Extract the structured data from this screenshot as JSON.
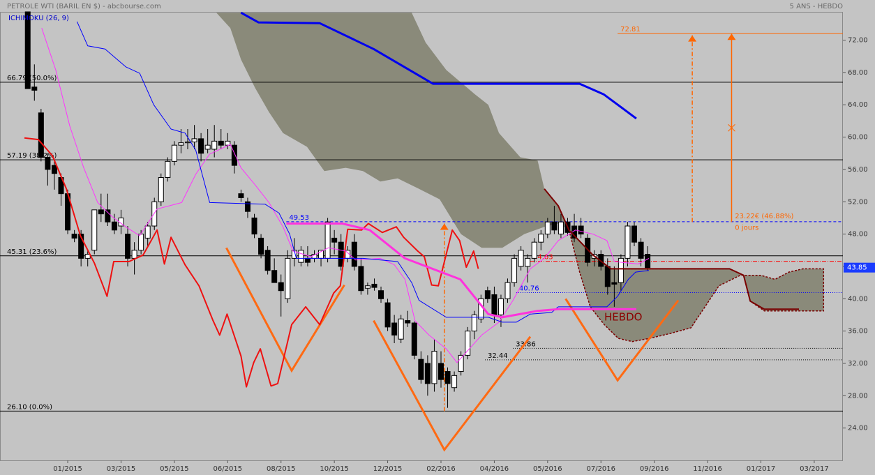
{
  "chart_data": {
    "type": "candlestick",
    "title": "PETROLE WTI (BARIL EN $) - abcbourse.com",
    "subtitle": "5 ANS - HEBDO",
    "legend": "ICHIMOKU (26, 9)",
    "xlim": [
      -4.16,
      122.3
    ],
    "xticks": [
      {
        "value": 6,
        "label": "01/2015"
      },
      {
        "value": 14,
        "label": "03/2015"
      },
      {
        "value": 22,
        "label": "05/2015"
      },
      {
        "value": 30,
        "label": "06/2015"
      },
      {
        "value": 38,
        "label": "08/2015"
      },
      {
        "value": 46,
        "label": "10/2015"
      },
      {
        "value": 54,
        "label": "12/2015"
      },
      {
        "value": 62,
        "label": "02/2016"
      },
      {
        "value": 70,
        "label": "04/2016"
      },
      {
        "value": 78,
        "label": "05/2016"
      },
      {
        "value": 86,
        "label": "07/2016"
      },
      {
        "value": 94,
        "label": "09/2016"
      },
      {
        "value": 102,
        "label": "11/2016"
      },
      {
        "value": 110,
        "label": "01/2017"
      },
      {
        "value": 118,
        "label": "03/2017"
      }
    ],
    "ylim": [
      20,
      75.5
    ],
    "yticks": [
      {
        "value": 24,
        "label": "24.00"
      },
      {
        "value": 28,
        "label": "28.00"
      },
      {
        "value": 32,
        "label": "32.00"
      },
      {
        "value": 36,
        "label": "36.00"
      },
      {
        "value": 40,
        "label": "40.00"
      },
      {
        "value": 44,
        "label": "44.00"
      },
      {
        "value": 48,
        "label": "48.00"
      },
      {
        "value": 52,
        "label": "52.00"
      },
      {
        "value": 56,
        "label": "56.00"
      },
      {
        "value": 60,
        "label": "60.00"
      },
      {
        "value": 64,
        "label": "64.00"
      },
      {
        "value": 68,
        "label": "68.00"
      },
      {
        "value": 72,
        "label": "72.00"
      }
    ],
    "up_color": "#ffffff",
    "down_color": "#000000",
    "ohlc": [
      [
        75.5,
        75.5,
        66,
        66
      ],
      [
        66.2,
        69,
        64.5,
        65.8
      ],
      [
        63,
        63.5,
        57,
        57.5
      ],
      [
        57.5,
        58,
        54,
        56
      ],
      [
        56.5,
        57,
        53.5,
        55.5
      ],
      [
        55,
        55.5,
        51.5,
        53
      ],
      [
        53,
        53.5,
        48,
        48.5
      ],
      [
        48,
        48.5,
        47,
        47.5
      ],
      [
        48,
        48.5,
        44,
        45
      ],
      [
        45,
        46,
        44,
        45.5
      ],
      [
        46,
        51,
        45.5,
        51
      ],
      [
        51,
        53,
        49.5,
        50.5
      ],
      [
        51,
        53,
        49,
        49.5
      ],
      [
        49.5,
        50.5,
        48,
        48.5
      ],
      [
        49,
        51,
        48,
        50
      ],
      [
        48,
        49,
        44,
        45
      ],
      [
        45,
        47,
        43,
        46
      ],
      [
        46,
        48.5,
        45.5,
        48
      ],
      [
        47.5,
        49.5,
        46.5,
        49
      ],
      [
        49,
        52.5,
        48.5,
        52
      ],
      [
        52,
        55.5,
        51.5,
        55
      ],
      [
        55,
        57.5,
        54.5,
        57
      ],
      [
        57,
        59.5,
        56.5,
        59
      ],
      [
        59,
        61,
        58,
        59.3
      ],
      [
        59.3,
        61,
        58.5,
        59.4
      ],
      [
        59.4,
        61.5,
        58.5,
        59.8
      ],
      [
        59.8,
        60.5,
        57,
        58
      ],
      [
        58.5,
        61,
        58,
        59
      ],
      [
        58.5,
        61.5,
        57.5,
        59.5
      ],
      [
        59.5,
        61,
        58.5,
        59
      ],
      [
        59,
        60.5,
        58.5,
        59.5
      ],
      [
        59,
        59.5,
        55.5,
        56.5
      ],
      [
        53,
        53.5,
        52,
        52.5
      ],
      [
        52,
        52.5,
        50,
        50.8
      ],
      [
        50,
        50.5,
        47.5,
        48
      ],
      [
        47.5,
        48,
        45,
        45.5
      ],
      [
        46,
        46.5,
        43,
        43.5
      ],
      [
        43.5,
        45,
        42,
        42
      ],
      [
        42,
        43,
        37.8,
        41
      ],
      [
        40,
        46,
        39.5,
        45
      ],
      [
        45,
        47.5,
        44,
        46
      ],
      [
        44.5,
        46.5,
        44,
        46
      ],
      [
        45,
        46.5,
        44,
        44.5
      ],
      [
        45,
        46,
        44.5,
        45.5
      ],
      [
        45,
        46,
        44,
        46
      ],
      [
        45,
        50,
        44.5,
        49.5
      ],
      [
        47.5,
        48.5,
        45.5,
        47
      ],
      [
        47,
        48,
        43.5,
        44
      ],
      [
        45,
        46.5,
        44.5,
        46
      ],
      [
        47,
        48,
        43.5,
        44
      ],
      [
        44,
        45,
        40.5,
        41
      ],
      [
        41.3,
        42,
        40.5,
        41.6
      ],
      [
        41.8,
        42.5,
        41,
        41.4
      ],
      [
        41,
        41.5,
        39.5,
        40
      ],
      [
        39.5,
        40,
        36,
        36.5
      ],
      [
        37,
        38,
        34.5,
        35.5
      ],
      [
        35,
        38,
        34.5,
        37.5
      ],
      [
        37.3,
        38.5,
        36.5,
        37
      ],
      [
        37,
        37.2,
        32.5,
        33
      ],
      [
        32.5,
        33.5,
        29.5,
        30
      ],
      [
        32,
        33,
        28,
        29.5
      ],
      [
        29.5,
        35,
        28.5,
        33.5
      ],
      [
        32,
        33.5,
        29,
        30
      ],
      [
        31,
        31.5,
        26.5,
        29.5
      ],
      [
        29,
        31,
        28.5,
        30.5
      ],
      [
        31,
        33.5,
        30.5,
        33
      ],
      [
        33,
        36.5,
        32.5,
        36
      ],
      [
        36,
        38.5,
        35,
        38
      ],
      [
        37.5,
        40.5,
        37,
        40
      ],
      [
        41,
        41.5,
        39.5,
        40
      ],
      [
        40.5,
        41.5,
        37,
        38
      ],
      [
        38,
        40.5,
        36.5,
        40
      ],
      [
        40,
        42.5,
        39.5,
        42
      ],
      [
        42,
        45.5,
        41.5,
        45
      ],
      [
        44,
        46.5,
        43.5,
        46
      ],
      [
        44,
        45.5,
        42,
        45
      ],
      [
        45,
        47.5,
        44.5,
        47
      ],
      [
        47,
        48.5,
        46,
        48
      ],
      [
        48,
        50,
        47.5,
        49.5
      ],
      [
        49.5,
        51.5,
        48,
        48.5
      ],
      [
        48,
        50.5,
        47.5,
        49.5
      ],
      [
        49.5,
        50,
        47.8,
        48.2
      ],
      [
        49,
        50.5,
        47,
        47.5
      ],
      [
        49,
        50,
        47.5,
        48
      ],
      [
        47.5,
        48,
        44,
        44.5
      ],
      [
        45,
        46,
        44,
        45.5
      ],
      [
        45.5,
        46,
        43.5,
        44
      ],
      [
        44,
        45,
        40.5,
        41.5
      ],
      [
        42,
        44,
        39,
        41.8
      ],
      [
        42,
        45.5,
        41,
        45
      ],
      [
        45,
        49.5,
        44,
        49
      ],
      [
        49,
        49.5,
        46.5,
        47
      ],
      [
        47,
        47.5,
        44,
        45
      ],
      [
        45.5,
        46.5,
        43.5,
        43.85
      ]
    ],
    "clouds": [
      {
        "color": "#8a8a7a",
        "x": [
          28.3,
          30.4,
          32.0,
          34.1,
          36.2,
          38.3,
          41.9,
          44.5,
          47.7,
          50.3,
          52.9,
          55.5,
          58.7,
          61.8,
          65.0,
          68.1,
          71.2,
          74.5,
          77.5,
          79.6,
          81.2,
          79.6,
          77.5,
          76.5,
          73.9,
          70.7,
          69.1,
          67.1,
          62.8,
          59.7,
          57.6
        ],
        "values": [
          75.4,
          73.5,
          69.6,
          66.1,
          63.1,
          60.5,
          58.8,
          55.8,
          56.2,
          55.8,
          54.5,
          54.9,
          53.6,
          52.3,
          48.0,
          46.3,
          46.3,
          48.0,
          48.9,
          49.3,
          48.5,
          51.5,
          53.6,
          57.1,
          57.5,
          60.5,
          64.0,
          65.3,
          68.3,
          71.7,
          75.4
        ]
      },
      {
        "color": "#8a8a7a",
        "stroke": "#7a0000",
        "x": [
          81.2,
          82.8,
          84.4,
          86.5,
          88.6,
          90.7,
          93.3,
          96.4,
          99.5,
          101.6,
          103.7,
          106.9,
          110.0,
          112.1,
          114.2,
          116.3,
          119.4,
          119.4,
          110.5,
          108.4,
          107.4,
          105.3,
          87.5,
          84.8
        ],
        "values": [
          48.5,
          43.3,
          39.0,
          36.8,
          35.1,
          34.7,
          35.1,
          35.7,
          36.4,
          39.0,
          41.6,
          42.9,
          42.9,
          42.4,
          43.3,
          43.7,
          43.7,
          38.5,
          38.5,
          39.7,
          42.9,
          43.7,
          43.7,
          45.4
        ]
      }
    ],
    "levels": [
      {
        "value": 66.79,
        "label": "66.79  (50.0%)",
        "color": "#000000"
      },
      {
        "value": 57.19,
        "label": "57.19  (38.2%)",
        "color": "#000000"
      },
      {
        "value": 45.31,
        "label": "45.31  (23.6%)",
        "color": "#000000"
      },
      {
        "value": 26.1,
        "label": "26.10  (0.0%)",
        "color": "#000000"
      },
      {
        "value": 49.53,
        "color": "#0000ff",
        "dash": "4,3",
        "x_start": 38.8
      },
      {
        "value": 40.76,
        "color": "#0000ff",
        "dash": "1,2",
        "x_start": 73.3
      },
      {
        "value": 44.63,
        "color": "#ff0000",
        "dash": "6,2,1,2",
        "x_start": 75.4
      },
      {
        "value": 33.86,
        "color": "#000000",
        "dash": "1,2",
        "x_start": 72.8
      },
      {
        "value": 32.44,
        "color": "#000000",
        "dash": "1,2",
        "x_start": 68.6
      },
      {
        "value": 72.81,
        "color": "#ff6600",
        "x_start": 88.5
      }
    ],
    "lines": [
      {
        "color": "#ff6a13",
        "width": 3,
        "x": [
          29.8,
          39.6,
          47.5
        ],
        "values": [
          46.3,
          31.1,
          41.7
        ]
      },
      {
        "color": "#ff6a13",
        "width": 3,
        "x": [
          51.9,
          62.5,
          75.4
        ],
        "values": [
          37.3,
          21.3,
          35.3
        ]
      },
      {
        "color": "#ff6a13",
        "width": 3,
        "x": [
          80.7,
          88.5,
          97.6
        ],
        "values": [
          40.0,
          29.9,
          39.8
        ]
      },
      {
        "color": "#ee1111",
        "width": 2,
        "x": [
          -0.5,
          1.6,
          3.7,
          5.8,
          7.9,
          10.0,
          11.9,
          12.9,
          15.2,
          17.3,
          19.4,
          20.5,
          21.5,
          23.6,
          25.7,
          27.8,
          28.8,
          29.9,
          32.0,
          32.8,
          33.9,
          34.9,
          36.5,
          37.5,
          39.6,
          41.7,
          43.8,
          45.9,
          46.9,
          48.0,
          50.1,
          51.1,
          53.2,
          55.3,
          56.4,
          58.5,
          59.5,
          60.6,
          61.6,
          63.7,
          64.8,
          65.8,
          66.9,
          67.6
        ],
        "values": [
          59.9,
          59.7,
          57.7,
          53.6,
          47.8,
          44.4,
          40.3,
          44.6,
          44.6,
          45.4,
          48.5,
          44.3,
          47.6,
          44.2,
          41.6,
          37.3,
          35.5,
          38.1,
          32.9,
          29.1,
          32.1,
          33.8,
          29.2,
          29.5,
          36.8,
          39.0,
          36.8,
          40.7,
          41.6,
          48.6,
          48.5,
          49.3,
          48.2,
          48.9,
          47.6,
          45.9,
          45.2,
          41.7,
          41.6,
          48.5,
          47.2,
          43.9,
          45.9,
          43.7
        ]
      },
      {
        "color": "#ff33ff",
        "width": 1,
        "x": [
          2.1,
          4.2,
          6.3,
          8.4,
          10.5,
          12.6,
          14.7,
          16.8,
          19.4,
          23.1,
          25.2,
          27.3,
          30.4,
          32.0,
          34.1,
          36.2,
          38.3,
          39.8,
          42.5,
          45.1,
          47.7,
          49.2,
          52.9,
          55.0,
          56.6,
          58.1,
          60.2,
          62.8,
          64.4,
          68.1,
          70.7,
          72.8,
          75.4,
          77.5,
          79.6,
          82.2,
          84.8,
          86.9,
          88.0,
          91.6,
          93.2
        ],
        "values": [
          73.5,
          68.3,
          61.4,
          56.2,
          51.9,
          50.2,
          48.9,
          47.8,
          51.1,
          51.9,
          55.4,
          57.9,
          59.1,
          56.2,
          54.1,
          51.9,
          48.9,
          45.9,
          45.2,
          46.3,
          45.9,
          44.8,
          45.0,
          44.2,
          42.4,
          37.3,
          35.5,
          33.8,
          32.1,
          35.5,
          37.1,
          39.8,
          43.7,
          45.0,
          47.2,
          48.5,
          48.0,
          47.2,
          44.6,
          44.3,
          45.0
        ]
      },
      {
        "color": "#0000ff",
        "width": 1,
        "x": [
          7.4,
          9.0,
          11.6,
          14.7,
          16.8,
          18.9,
          21.5,
          23.6,
          25.2,
          27.3,
          35.6,
          37.7,
          39.3,
          40.3,
          45.1,
          50.3,
          55.5,
          57.6,
          58.7,
          62.8,
          69.1,
          71.2,
          73.3,
          75.4,
          78.6,
          79.6,
          86.9,
          88.5,
          90.1,
          91.2,
          93.2
        ],
        "values": [
          74.3,
          71.3,
          70.9,
          68.7,
          67.9,
          64.0,
          61.0,
          60.5,
          58.4,
          51.9,
          51.7,
          50.6,
          48.0,
          45.0,
          45.0,
          45.0,
          44.6,
          42.0,
          39.8,
          37.7,
          37.7,
          37.1,
          37.1,
          38.1,
          38.3,
          39.0,
          39.0,
          40.3,
          42.4,
          43.3,
          43.5
        ]
      },
      {
        "color": "#0000ee",
        "width": 3,
        "x": [
          32.0,
          34.6,
          43.8,
          51.9,
          60.8,
          82.8,
          86.4,
          91.3
        ],
        "values": [
          75.4,
          74.2,
          74.1,
          70.9,
          66.6,
          66.6,
          65.3,
          62.3
        ]
      },
      {
        "color": "#ff33dd",
        "width": 3,
        "x": [
          38.8,
          47.2,
          51.3,
          56.6,
          64.9,
          69.1,
          71.2,
          76.5,
          79.6,
          91.3
        ],
        "values": [
          49.3,
          49.3,
          48.5,
          45.0,
          42.4,
          38.1,
          37.7,
          38.5,
          38.7,
          38.7
        ]
      },
      {
        "color": "#7a0000",
        "width": 2,
        "x": [
          77.5,
          79.6,
          81.2,
          84.8,
          87.5,
          105.3,
          107.4,
          108.4,
          110.5,
          115.7
        ],
        "values": [
          53.6,
          51.5,
          48.5,
          45.4,
          43.7,
          43.7,
          42.9,
          39.7,
          38.7,
          38.7
        ]
      }
    ],
    "arrows": [
      {
        "x": 62.5,
        "from": 26.1,
        "to": 49.3,
        "color": "#ff6600",
        "dash": "6,3,2,3"
      },
      {
        "x": 99.7,
        "from": 49.5,
        "to": 72.6,
        "color": "#ff6600",
        "dash": "6,3,2,3"
      },
      {
        "x": 105.6,
        "from": 49.5,
        "to": 72.8,
        "color": "#ff6600"
      }
    ],
    "annotations": [
      {
        "text": "HEBDO",
        "x": 86.5,
        "y": 37.7,
        "color": "#8b0000",
        "size": 15
      },
      {
        "text": "23.22€ (46.88%)",
        "x": 106.1,
        "y": 50.2,
        "color": "#ff6600",
        "size": 10
      },
      {
        "text": "0 jours",
        "x": 106.1,
        "y": 48.8,
        "color": "#ff6600",
        "size": 10
      }
    ],
    "last_price": 43.85,
    "last_price_color": "#1a3cff"
  }
}
